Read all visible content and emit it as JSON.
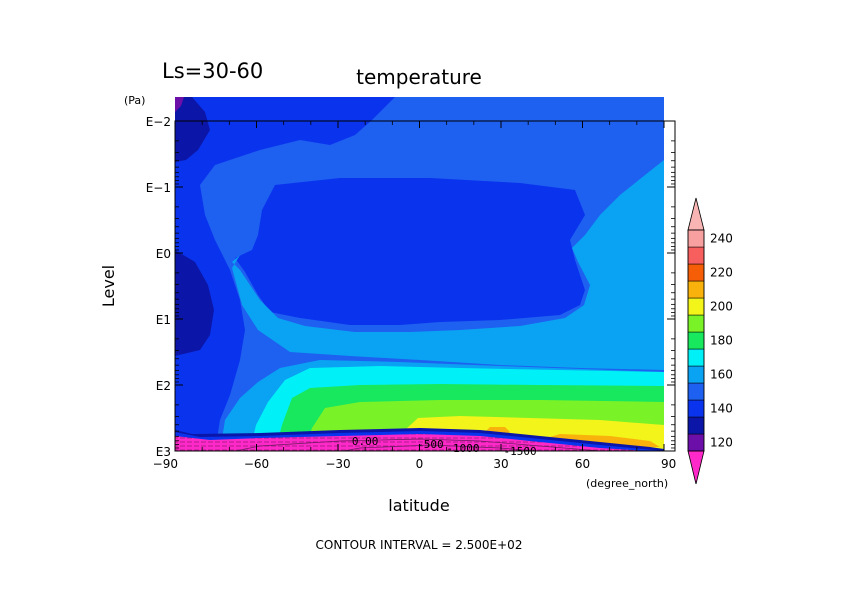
{
  "chart_data": {
    "type": "heatmap",
    "period_label": "Ls=30-60",
    "title": "temperature",
    "xlabel": "latitude",
    "x_unit": "(degree_north)",
    "ylabel": "Level",
    "y_unit": "(Pa)",
    "xlim": [
      -90,
      90
    ],
    "x_ticks": [
      {
        "value": -90,
        "label": "−90"
      },
      {
        "value": -60,
        "label": "−60"
      },
      {
        "value": -30,
        "label": "−30"
      },
      {
        "value": 0,
        "label": "0"
      },
      {
        "value": 30,
        "label": "30"
      },
      {
        "value": 60,
        "label": "60"
      },
      {
        "value": 90,
        "label": "90"
      }
    ],
    "y_scale": "log",
    "ylim": [
      1000,
      0.01
    ],
    "y_ticks": [
      {
        "value": 0.01,
        "label": "E−2"
      },
      {
        "value": 0.1,
        "label": "E−1"
      },
      {
        "value": 1,
        "label": "E0"
      },
      {
        "value": 10,
        "label": "E1"
      },
      {
        "value": 100,
        "label": "E2"
      },
      {
        "value": 1000,
        "label": "E3"
      }
    ],
    "colorbar": {
      "levels": [
        120,
        130,
        140,
        150,
        160,
        170,
        180,
        190,
        200,
        210,
        220,
        230,
        240
      ],
      "tick_labels": [
        "120",
        "140",
        "160",
        "180",
        "200",
        "220",
        "240"
      ],
      "tick_values": [
        120,
        140,
        160,
        180,
        200,
        220,
        240
      ],
      "colors": [
        "#6b0fa8",
        "#0b16a8",
        "#0a33ee",
        "#1e60f0",
        "#0aa2f2",
        "#00f0f8",
        "#18e85e",
        "#7af228",
        "#f2f41a",
        "#f9b20b",
        "#f55e07",
        "#f75e5e",
        "#f8a0a0"
      ],
      "under_color": "#ff28c8",
      "over_color": "#f9b4b4"
    },
    "contour_labels": [
      {
        "text": "0.00",
        "lat": -20,
        "level": 700
      },
      {
        "text": "-500",
        "lat": 4,
        "level": 780
      },
      {
        "text": "-1000",
        "lat": 16,
        "level": 900
      },
      {
        "text": "-1500",
        "lat": 37,
        "level": 1000
      }
    ],
    "footnote": "CONTOUR INTERVAL = 2.500E+02"
  }
}
